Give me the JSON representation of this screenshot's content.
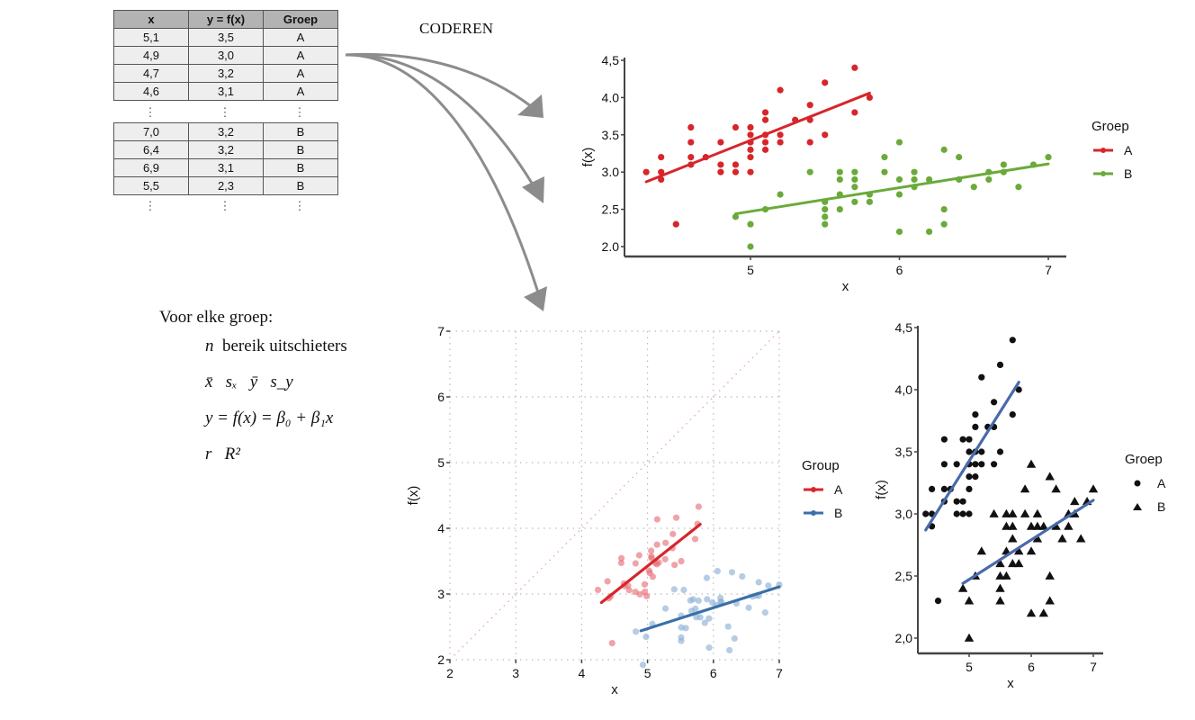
{
  "table": {
    "headers": [
      "x",
      "y = f(x)",
      "Groep"
    ],
    "rows_top": [
      [
        "5,1",
        "3,5",
        "A"
      ],
      [
        "4,9",
        "3,0",
        "A"
      ],
      [
        "4,7",
        "3,2",
        "A"
      ],
      [
        "4,6",
        "3,1",
        "A"
      ]
    ],
    "rows_bottom": [
      [
        "7,0",
        "3,2",
        "B"
      ],
      [
        "6,4",
        "3,2",
        "B"
      ],
      [
        "6,9",
        "3,1",
        "B"
      ],
      [
        "5,5",
        "2,3",
        "B"
      ]
    ],
    "ellipsis": "⋮"
  },
  "arrow_label": "CODEREN",
  "summary": {
    "heading": "Voor elke groep:",
    "line1_symbol": "n",
    "line1_text": "bereik uitschieters",
    "line2": "x̄   sₓ   ȳ   s_y",
    "line3": "y = f(x) = β₀ + β₁x",
    "line4": "r   R²"
  },
  "colors": {
    "group_a_red": "#d7262b",
    "group_b_green": "#6aaa3a",
    "group_a_light": "#e8717a",
    "group_b_blue": "#3a6fa8",
    "group_b_light": "#8fb0d6",
    "arrow_gray": "#8c8c8c",
    "black_line_blue": "#4a6aa8"
  },
  "chart_data": [
    {
      "id": "top-chart",
      "type": "scatter",
      "xlabel": "x",
      "ylabel": "f(x)",
      "xlim": [
        4.2,
        7.1
      ],
      "ylim": [
        1.9,
        4.5
      ],
      "xticks": [
        "5",
        "6",
        "7"
      ],
      "xtick_values": [
        5,
        6,
        7
      ],
      "yticks": [
        "2.0",
        "2.5",
        "3.0",
        "3.5",
        "4.0",
        "4,5"
      ],
      "ytick_values": [
        2.0,
        2.5,
        3.0,
        3.5,
        4.0,
        4.5
      ],
      "grid": false,
      "legend": {
        "title": "Groep",
        "position": "right",
        "entries": [
          "A",
          "B"
        ]
      },
      "series": [
        {
          "name": "A",
          "color": "#d7262b",
          "marker": "circle",
          "fit": [
            [
              4.3,
              2.87
            ],
            [
              5.8,
              4.06
            ]
          ]
        },
        {
          "name": "B",
          "color": "#6aaa3a",
          "marker": "circle",
          "fit": [
            [
              4.9,
              2.44
            ],
            [
              7.0,
              3.11
            ]
          ]
        }
      ]
    },
    {
      "id": "middle-chart",
      "type": "scatter",
      "xlabel": "x",
      "ylabel": "f(x)",
      "xlim": [
        2,
        7
      ],
      "ylim": [
        2,
        7
      ],
      "xticks": [
        "2",
        "3",
        "4",
        "5",
        "6",
        "7"
      ],
      "xtick_values": [
        2,
        3,
        4,
        5,
        6,
        7
      ],
      "yticks": [
        "2",
        "3",
        "4",
        "5",
        "6",
        "7"
      ],
      "ytick_values": [
        2,
        3,
        4,
        5,
        6,
        7
      ],
      "grid": true,
      "identity_line": true,
      "jitter": true,
      "legend": {
        "title": "Group",
        "position": "right",
        "entries": [
          "A",
          "B"
        ]
      },
      "series": [
        {
          "name": "A",
          "color": "#e8717a",
          "line_color": "#d7262b",
          "marker": "circle",
          "fit": [
            [
              4.3,
              2.87
            ],
            [
              5.8,
              4.06
            ]
          ]
        },
        {
          "name": "B",
          "color": "#8fb0d6",
          "line_color": "#3a6fa8",
          "marker": "circle",
          "fit": [
            [
              4.9,
              2.44
            ],
            [
              7.0,
              3.11
            ]
          ]
        }
      ]
    },
    {
      "id": "right-chart",
      "type": "scatter",
      "xlabel": "x",
      "ylabel": "f(x)",
      "xlim": [
        4.2,
        7.1
      ],
      "ylim": [
        1.9,
        4.5
      ],
      "xticks": [
        "5",
        "6",
        "7"
      ],
      "xtick_values": [
        5,
        6,
        7
      ],
      "yticks": [
        "2,0",
        "2,5",
        "3,0",
        "3,5",
        "4,0",
        "4,5"
      ],
      "ytick_values": [
        2.0,
        2.5,
        3.0,
        3.5,
        4.0,
        4.5
      ],
      "grid": false,
      "legend": {
        "title": "Groep",
        "position": "right",
        "entries": [
          "A",
          "B"
        ]
      },
      "series": [
        {
          "name": "A",
          "color": "#111111",
          "line_color": "#4a6aa8",
          "marker": "circle",
          "fit": [
            [
              4.3,
              2.87
            ],
            [
              5.8,
              4.06
            ]
          ]
        },
        {
          "name": "B",
          "color": "#111111",
          "line_color": "#4a6aa8",
          "marker": "triangle",
          "fit": [
            [
              4.9,
              2.44
            ],
            [
              7.0,
              3.11
            ]
          ]
        }
      ]
    }
  ],
  "points": {
    "A": [
      [
        4.3,
        3.0
      ],
      [
        4.4,
        2.9
      ],
      [
        4.4,
        3.0
      ],
      [
        4.4,
        3.2
      ],
      [
        4.5,
        2.3
      ],
      [
        4.6,
        3.1
      ],
      [
        4.6,
        3.2
      ],
      [
        4.6,
        3.4
      ],
      [
        4.6,
        3.6
      ],
      [
        4.7,
        3.2
      ],
      [
        4.8,
        3.0
      ],
      [
        4.8,
        3.1
      ],
      [
        4.8,
        3.4
      ],
      [
        4.9,
        3.0
      ],
      [
        4.9,
        3.1
      ],
      [
        4.9,
        3.6
      ],
      [
        5.0,
        3.0
      ],
      [
        5.0,
        3.2
      ],
      [
        5.0,
        3.3
      ],
      [
        5.0,
        3.4
      ],
      [
        5.0,
        3.5
      ],
      [
        5.0,
        3.6
      ],
      [
        5.1,
        3.3
      ],
      [
        5.1,
        3.4
      ],
      [
        5.1,
        3.5
      ],
      [
        5.1,
        3.7
      ],
      [
        5.1,
        3.8
      ],
      [
        5.2,
        3.4
      ],
      [
        5.2,
        3.5
      ],
      [
        5.2,
        4.1
      ],
      [
        5.3,
        3.7
      ],
      [
        5.4,
        3.4
      ],
      [
        5.4,
        3.7
      ],
      [
        5.4,
        3.9
      ],
      [
        5.5,
        3.5
      ],
      [
        5.5,
        4.2
      ],
      [
        5.7,
        3.8
      ],
      [
        5.7,
        4.4
      ],
      [
        5.8,
        4.0
      ]
    ],
    "B": [
      [
        4.9,
        2.4
      ],
      [
        5.0,
        2.0
      ],
      [
        5.0,
        2.3
      ],
      [
        5.1,
        2.5
      ],
      [
        5.2,
        2.7
      ],
      [
        5.4,
        3.0
      ],
      [
        5.5,
        2.3
      ],
      [
        5.5,
        2.4
      ],
      [
        5.5,
        2.5
      ],
      [
        5.5,
        2.6
      ],
      [
        5.6,
        2.5
      ],
      [
        5.6,
        2.7
      ],
      [
        5.6,
        2.9
      ],
      [
        5.6,
        3.0
      ],
      [
        5.7,
        2.6
      ],
      [
        5.7,
        2.8
      ],
      [
        5.7,
        2.9
      ],
      [
        5.7,
        3.0
      ],
      [
        5.8,
        2.6
      ],
      [
        5.8,
        2.7
      ],
      [
        5.9,
        3.0
      ],
      [
        5.9,
        3.2
      ],
      [
        6.0,
        2.2
      ],
      [
        6.0,
        2.7
      ],
      [
        6.0,
        2.9
      ],
      [
        6.0,
        3.4
      ],
      [
        6.1,
        2.8
      ],
      [
        6.1,
        2.9
      ],
      [
        6.1,
        3.0
      ],
      [
        6.2,
        2.2
      ],
      [
        6.2,
        2.9
      ],
      [
        6.3,
        2.3
      ],
      [
        6.3,
        2.5
      ],
      [
        6.3,
        3.3
      ],
      [
        6.4,
        2.9
      ],
      [
        6.4,
        3.2
      ],
      [
        6.5,
        2.8
      ],
      [
        6.6,
        2.9
      ],
      [
        6.6,
        3.0
      ],
      [
        6.7,
        3.0
      ],
      [
        6.7,
        3.1
      ],
      [
        6.8,
        2.8
      ],
      [
        6.9,
        3.1
      ],
      [
        7.0,
        3.2
      ]
    ]
  }
}
